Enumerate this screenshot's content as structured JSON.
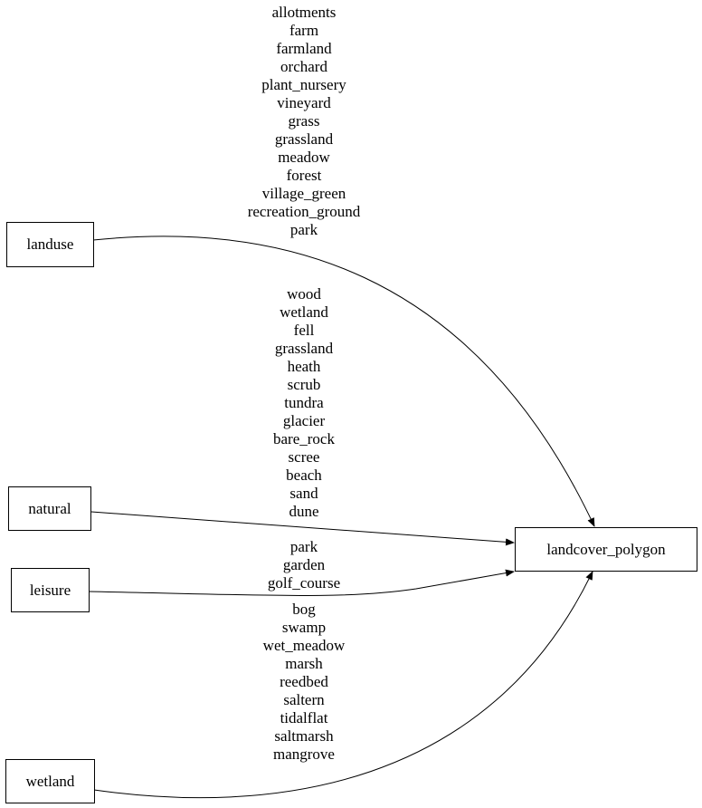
{
  "nodes": {
    "landuse": "landuse",
    "natural": "natural",
    "leisure": "leisure",
    "wetland": "wetland",
    "target": "landcover_polygon"
  },
  "edges": {
    "landuse": [
      "allotments",
      "farm",
      "farmland",
      "orchard",
      "plant_nursery",
      "vineyard",
      "grass",
      "grassland",
      "meadow",
      "forest",
      "village_green",
      "recreation_ground",
      "park"
    ],
    "natural": [
      "wood",
      "wetland",
      "fell",
      "grassland",
      "heath",
      "scrub",
      "tundra",
      "glacier",
      "bare_rock",
      "scree",
      "beach",
      "sand",
      "dune"
    ],
    "leisure": [
      "park",
      "garden",
      "golf_course"
    ],
    "wetland": [
      "bog",
      "swamp",
      "wet_meadow",
      "marsh",
      "reedbed",
      "saltern",
      "tidalflat",
      "saltmarsh",
      "mangrove"
    ]
  }
}
